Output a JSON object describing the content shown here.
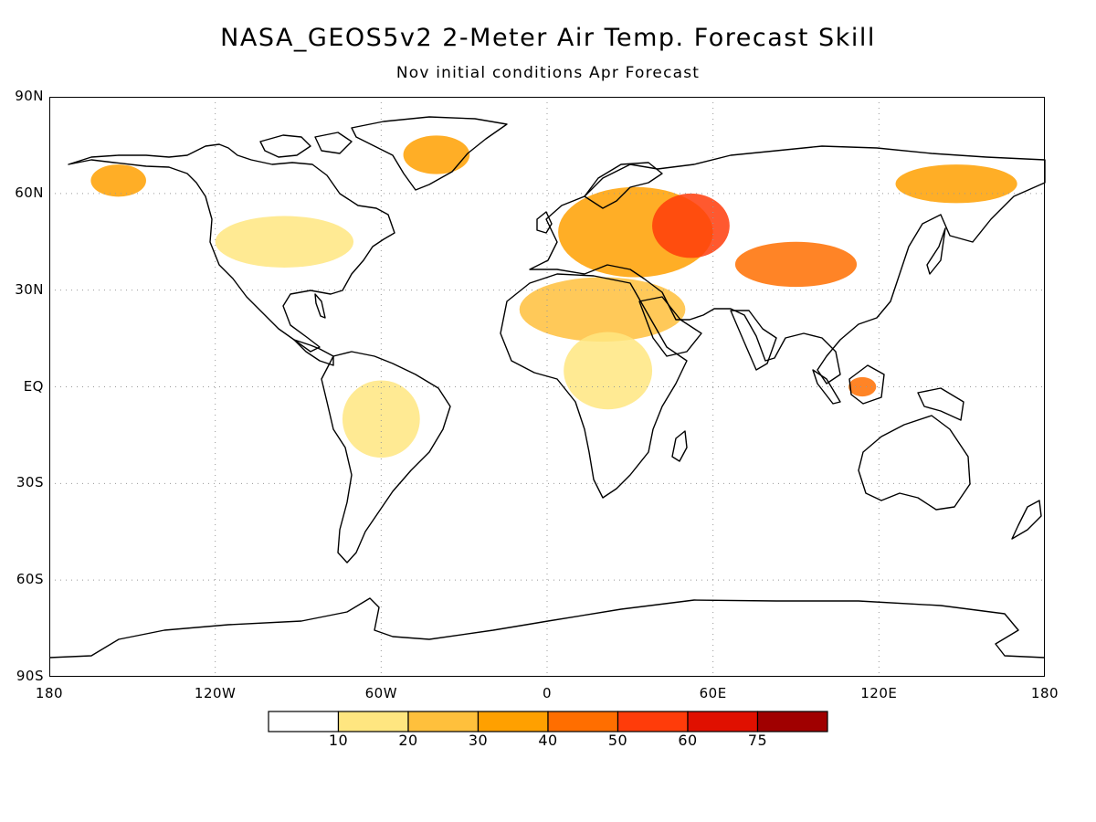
{
  "title": "NASA_GEOS5v2 2-Meter Air Temp. Forecast Skill",
  "subtitle": "Nov initial conditions  Apr Forecast",
  "lat_ticks": [
    {
      "label": "90N",
      "lat": 90
    },
    {
      "label": "60N",
      "lat": 60
    },
    {
      "label": "30N",
      "lat": 30
    },
    {
      "label": "EQ",
      "lat": 0
    },
    {
      "label": "30S",
      "lat": -30
    },
    {
      "label": "60S",
      "lat": -60
    },
    {
      "label": "90S",
      "lat": -90
    }
  ],
  "lon_ticks": [
    {
      "label": "180",
      "lon": -180
    },
    {
      "label": "120W",
      "lon": -120
    },
    {
      "label": "60W",
      "lon": -60
    },
    {
      "label": "0",
      "lon": 0
    },
    {
      "label": "60E",
      "lon": 60
    },
    {
      "label": "120E",
      "lon": 120
    },
    {
      "label": "180",
      "lon": 180
    }
  ],
  "colorbar": {
    "levels": [
      "10",
      "20",
      "30",
      "40",
      "50",
      "60",
      "75"
    ],
    "colors": [
      "#ffffff",
      "#ffe680",
      "#ffc03c",
      "#ffa000",
      "#ff6e00",
      "#ff3c0a",
      "#e01000",
      "#a00000"
    ]
  },
  "skill_regions": [
    {
      "lon": 32,
      "lat": 48,
      "rlon": 28,
      "rlat": 14,
      "level": 3
    },
    {
      "lon": 52,
      "lat": 50,
      "rlon": 14,
      "rlat": 10,
      "level": 5
    },
    {
      "lon": 90,
      "lat": 38,
      "rlon": 22,
      "rlat": 7,
      "level": 4
    },
    {
      "lon": 148,
      "lat": 63,
      "rlon": 22,
      "rlat": 6,
      "level": 3
    },
    {
      "lon": 20,
      "lat": 24,
      "rlon": 30,
      "rlat": 10,
      "level": 2
    },
    {
      "lon": -40,
      "lat": 72,
      "rlon": 12,
      "rlat": 6,
      "level": 3
    },
    {
      "lon": -155,
      "lat": 64,
      "rlon": 10,
      "rlat": 5,
      "level": 3
    },
    {
      "lon": 114,
      "lat": 0,
      "rlon": 5,
      "rlat": 3,
      "level": 4
    },
    {
      "lon": -60,
      "lat": -10,
      "rlon": 14,
      "rlat": 12,
      "level": 1
    },
    {
      "lon": 22,
      "lat": 5,
      "rlon": 16,
      "rlat": 12,
      "level": 1
    },
    {
      "lon": -95,
      "lat": 45,
      "rlon": 25,
      "rlat": 8,
      "level": 1
    }
  ]
}
